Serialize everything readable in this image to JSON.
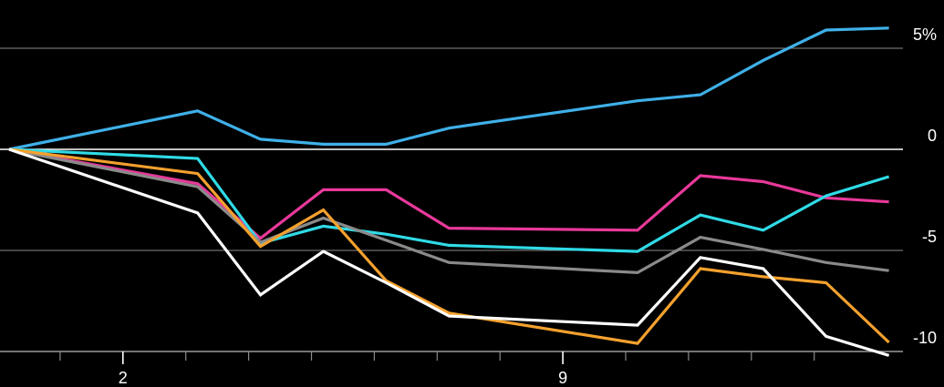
{
  "chart_data": {
    "type": "line",
    "title": "",
    "xlabel": "",
    "ylabel": "",
    "ylim": [
      -10,
      6
    ],
    "yticks": [
      {
        "value": 5,
        "label": "5%"
      },
      {
        "value": 0,
        "label": "0"
      },
      {
        "value": -5,
        "label": "-5"
      },
      {
        "value": -10,
        "label": "-10"
      }
    ],
    "x": [
      0,
      3,
      4,
      5,
      6,
      7,
      10,
      11,
      12,
      13,
      14
    ],
    "x_minor_ticks": [
      -1,
      0,
      1,
      3,
      4,
      5,
      6,
      7,
      8,
      10,
      11,
      12,
      13
    ],
    "x_labeled_ticks": [
      {
        "value": 2,
        "label": "2"
      },
      {
        "value": 9,
        "label": "9"
      }
    ],
    "grid": true,
    "legend": "none",
    "series": [
      {
        "color": "#3fb0e8",
        "values": [
          0,
          1.9,
          0.5,
          0.25,
          0.25,
          1.05,
          2.4,
          2.7,
          4.4,
          5.9,
          6.0
        ]
      },
      {
        "color": "#e8399a",
        "values": [
          0,
          -1.7,
          -4.4,
          -2.0,
          -2.0,
          -3.9,
          -4.0,
          -1.3,
          -1.6,
          -2.4,
          -2.6
        ]
      },
      {
        "color": "#2fdbe6",
        "values": [
          0,
          -0.45,
          -4.65,
          -3.8,
          -4.2,
          -4.75,
          -5.05,
          -3.25,
          -4.0,
          -2.3,
          -1.35
        ]
      },
      {
        "color": "#8a8a8a",
        "values": [
          0,
          -1.85,
          -4.6,
          -3.4,
          -4.5,
          -5.6,
          -6.1,
          -4.35,
          -4.95,
          -5.6,
          -6.0
        ]
      },
      {
        "color": "#f5a12e",
        "values": [
          0,
          -1.2,
          -4.8,
          -3.0,
          -6.5,
          -8.1,
          -9.6,
          -5.9,
          -6.3,
          -6.6,
          -9.55
        ]
      },
      {
        "color": "#ffffff",
        "values": [
          0,
          -3.15,
          -7.2,
          -5.05,
          -6.6,
          -8.25,
          -8.7,
          -5.35,
          -5.9,
          -9.25,
          -10.2
        ]
      }
    ]
  }
}
